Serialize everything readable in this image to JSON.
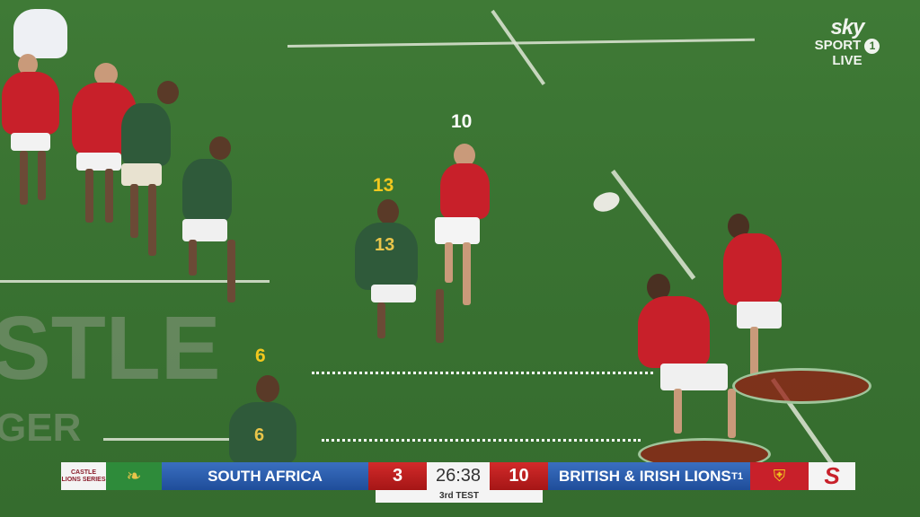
{
  "broadcaster_logo": {
    "line1": "sky",
    "line2": "SPORT",
    "channel": "1",
    "line3": "LIVE"
  },
  "annotations": {
    "player_10": "10",
    "player_13": "13",
    "player_6": "6"
  },
  "jerseys": {
    "sa_13": "13",
    "sa_6": "6"
  },
  "field_branding": {
    "text1": "STLE",
    "text2": "GER"
  },
  "scoreboard": {
    "sponsor_logo": "CASTLE LIONS SERIES",
    "home_team": "SOUTH AFRICA",
    "home_score": "3",
    "clock": "26:38",
    "away_score": "10",
    "away_team": "BRITISH & IRISH LIONS",
    "away_indicator": "T1",
    "match_label": "3rd TEST",
    "channel_logo": "S"
  },
  "colors": {
    "field": "#3a7332",
    "home_green": "#2e8b3a",
    "bar_blue": "#2a5cab",
    "bar_red": "#c01f1f",
    "annotation_yellow": "#f2c81e",
    "lions_red": "#c8202a",
    "sa_green": "#2f5a3a"
  }
}
